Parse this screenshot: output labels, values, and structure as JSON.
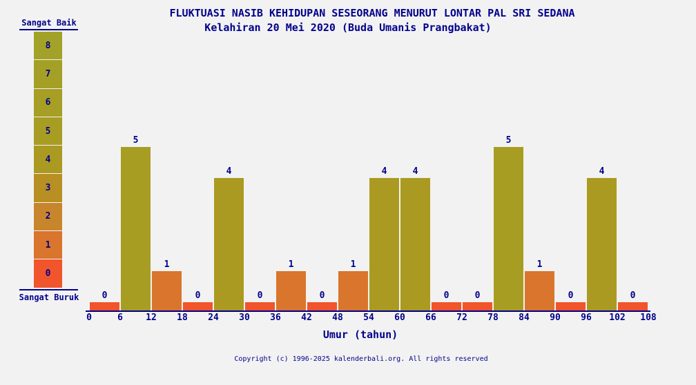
{
  "title": "FLUKTUASI NASIB KEHIDUPAN SESEORANG MENURUT LONTAR PAL SRI SEDANA",
  "subtitle": "Kelahiran 20 Mei 2020 (Buda Umanis Prangbakat)",
  "footer": "Copyright (c) 1996-2025 kalenderbali.org. All rights reserved",
  "colors": {
    "background": "#f2f2f2",
    "text": "#00008b",
    "axis": "#00008b"
  },
  "legend": {
    "top_label": "Sangat Baik",
    "bottom_label": "Sangat Buruk",
    "levels": [
      {
        "value": 8,
        "color": "#a2a228"
      },
      {
        "value": 7,
        "color": "#a4a026"
      },
      {
        "value": 6,
        "color": "#a69e25"
      },
      {
        "value": 5,
        "color": "#a89d23"
      },
      {
        "value": 4,
        "color": "#ab9a21"
      },
      {
        "value": 3,
        "color": "#b78f22"
      },
      {
        "value": 2,
        "color": "#c8862c"
      },
      {
        "value": 1,
        "color": "#d9752c"
      },
      {
        "value": 0,
        "color": "#f1552b"
      }
    ]
  },
  "chart_data": {
    "type": "bar",
    "title": "FLUKTUASI NASIB KEHIDUPAN SESEORANG MENURUT LONTAR PAL SRI SEDANA",
    "subtitle": "Kelahiran 20 Mei 2020 (Buda Umanis Prangbakat)",
    "xlabel": "Umur (tahun)",
    "ylabel": "",
    "scale_note": "0 = Sangat Buruk, 8 = Sangat Baik",
    "x_ticks": [
      0,
      6,
      12,
      18,
      24,
      30,
      36,
      42,
      48,
      54,
      60,
      66,
      72,
      78,
      84,
      90,
      96,
      102,
      108
    ],
    "categories": [
      "0-6",
      "6-12",
      "12-18",
      "18-24",
      "24-30",
      "30-36",
      "36-42",
      "42-48",
      "48-54",
      "54-60",
      "60-66",
      "66-72",
      "72-78",
      "78-84",
      "84-90",
      "90-96",
      "96-102",
      "102-108"
    ],
    "values": [
      0,
      5,
      1,
      0,
      4,
      0,
      1,
      0,
      1,
      4,
      4,
      0,
      0,
      5,
      1,
      0,
      4,
      0
    ],
    "ylim": [
      0,
      8
    ],
    "grid": false,
    "legend_position": "left"
  }
}
